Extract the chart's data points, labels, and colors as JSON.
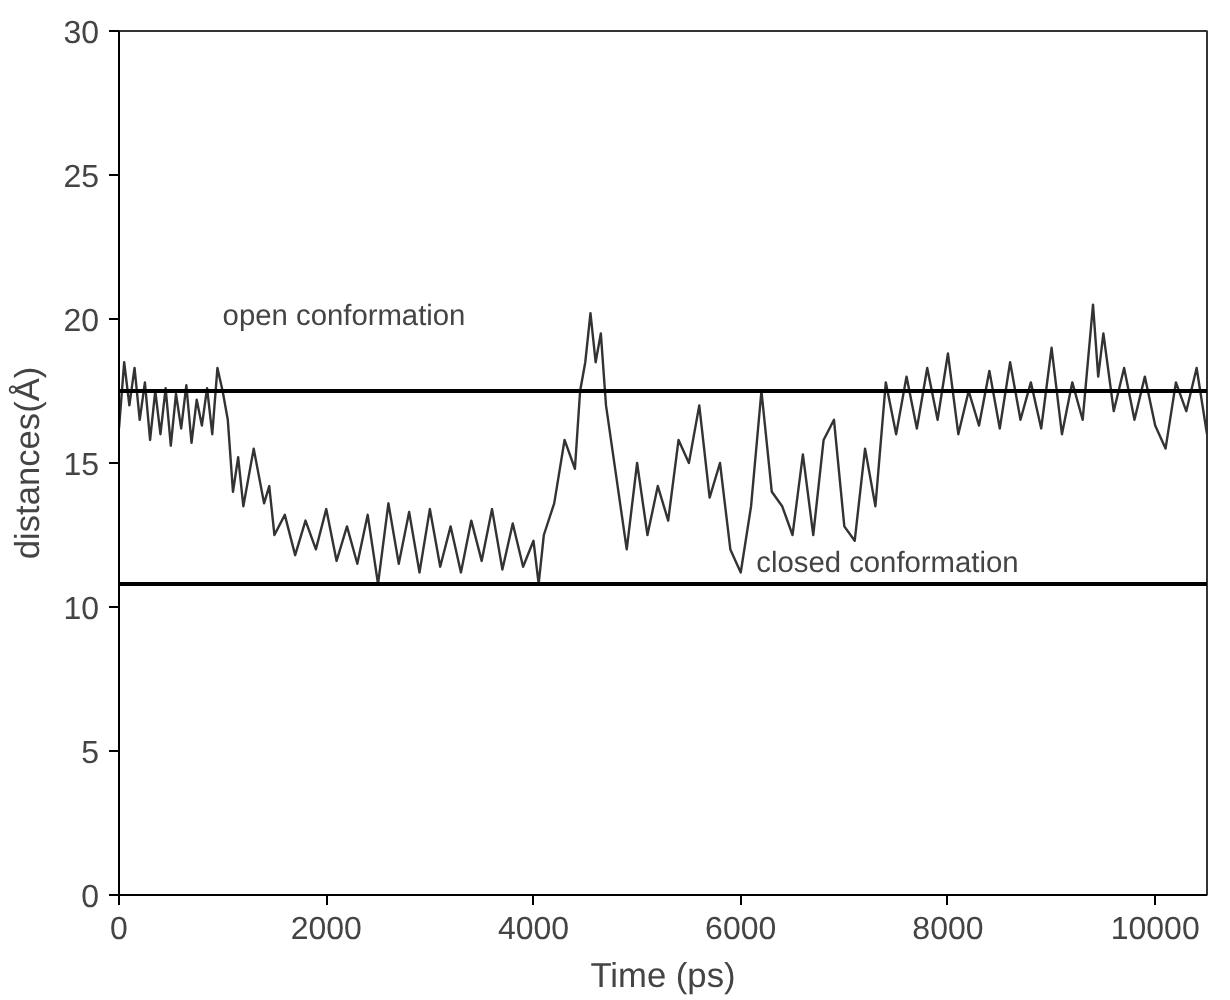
{
  "chart_data": {
    "type": "line",
    "xlabel": "Time (ps)",
    "ylabel": "distances(Å)",
    "xlim": [
      0,
      10500
    ],
    "ylim": [
      0,
      30
    ],
    "xticks": [
      0,
      2000,
      4000,
      6000,
      8000,
      10000
    ],
    "yticks": [
      0,
      5,
      10,
      15,
      20,
      25,
      30
    ],
    "grid": false,
    "ref_lines": [
      {
        "axis": "y",
        "value": 17.5,
        "color": "#000000"
      },
      {
        "axis": "y",
        "value": 10.8,
        "color": "#000000"
      }
    ],
    "annotations": [
      "open conformation",
      "closed conformation"
    ],
    "x": [
      0,
      50,
      100,
      150,
      200,
      250,
      300,
      350,
      400,
      450,
      500,
      550,
      600,
      650,
      700,
      750,
      800,
      850,
      900,
      950,
      1000,
      1050,
      1100,
      1150,
      1200,
      1300,
      1400,
      1450,
      1500,
      1600,
      1700,
      1800,
      1900,
      2000,
      2100,
      2200,
      2300,
      2400,
      2500,
      2600,
      2700,
      2800,
      2900,
      3000,
      3100,
      3200,
      3300,
      3400,
      3500,
      3600,
      3700,
      3800,
      3900,
      4000,
      4050,
      4100,
      4200,
      4300,
      4400,
      4450,
      4500,
      4550,
      4600,
      4650,
      4700,
      4800,
      4900,
      5000,
      5100,
      5200,
      5300,
      5400,
      5500,
      5600,
      5700,
      5800,
      5900,
      6000,
      6100,
      6200,
      6300,
      6400,
      6500,
      6600,
      6700,
      6800,
      6900,
      7000,
      7100,
      7200,
      7300,
      7400,
      7500,
      7600,
      7700,
      7800,
      7900,
      8000,
      8100,
      8200,
      8300,
      8400,
      8500,
      8600,
      8700,
      8800,
      8900,
      9000,
      9100,
      9200,
      9300,
      9400,
      9450,
      9500,
      9600,
      9700,
      9800,
      9900,
      10000,
      10100,
      10200,
      10300,
      10400,
      10500
    ],
    "series": [
      {
        "color": "#333333",
        "values": [
          16.2,
          18.5,
          17,
          18.3,
          16.5,
          17.8,
          15.8,
          17.5,
          16,
          17.6,
          15.6,
          17.4,
          16.2,
          17.7,
          15.7,
          17.2,
          16.3,
          17.6,
          16,
          18.3,
          17.5,
          16.5,
          14,
          15.2,
          13.5,
          15.5,
          13.6,
          14.2,
          12.5,
          13.2,
          11.8,
          13,
          12,
          13.4,
          11.6,
          12.8,
          11.5,
          13.2,
          10.8,
          13.6,
          11.5,
          13.3,
          11.2,
          13.4,
          11.4,
          12.8,
          11.2,
          13,
          11.6,
          13.4,
          11.3,
          12.9,
          11.4,
          12.3,
          10.8,
          12.5,
          13.6,
          15.8,
          14.8,
          17.5,
          18.5,
          20.2,
          18.5,
          19.5,
          17,
          14.5,
          12,
          15,
          12.5,
          14.2,
          13,
          15.8,
          15,
          17,
          13.8,
          15,
          12,
          11.2,
          13.5,
          17.5,
          14,
          13.5,
          12.5,
          15.3,
          12.5,
          15.8,
          16.5,
          12.8,
          12.3,
          15.5,
          13.5,
          17.8,
          16,
          18,
          16.2,
          18.3,
          16.5,
          18.8,
          16,
          17.5,
          16.3,
          18.2,
          16.2,
          18.5,
          16.5,
          17.8,
          16.2,
          19,
          16,
          17.8,
          16.5,
          20.5,
          18,
          19.5,
          16.8,
          18.3,
          16.5,
          18,
          16.3,
          15.5,
          17.8,
          16.8,
          18.3,
          16
        ]
      }
    ]
  }
}
